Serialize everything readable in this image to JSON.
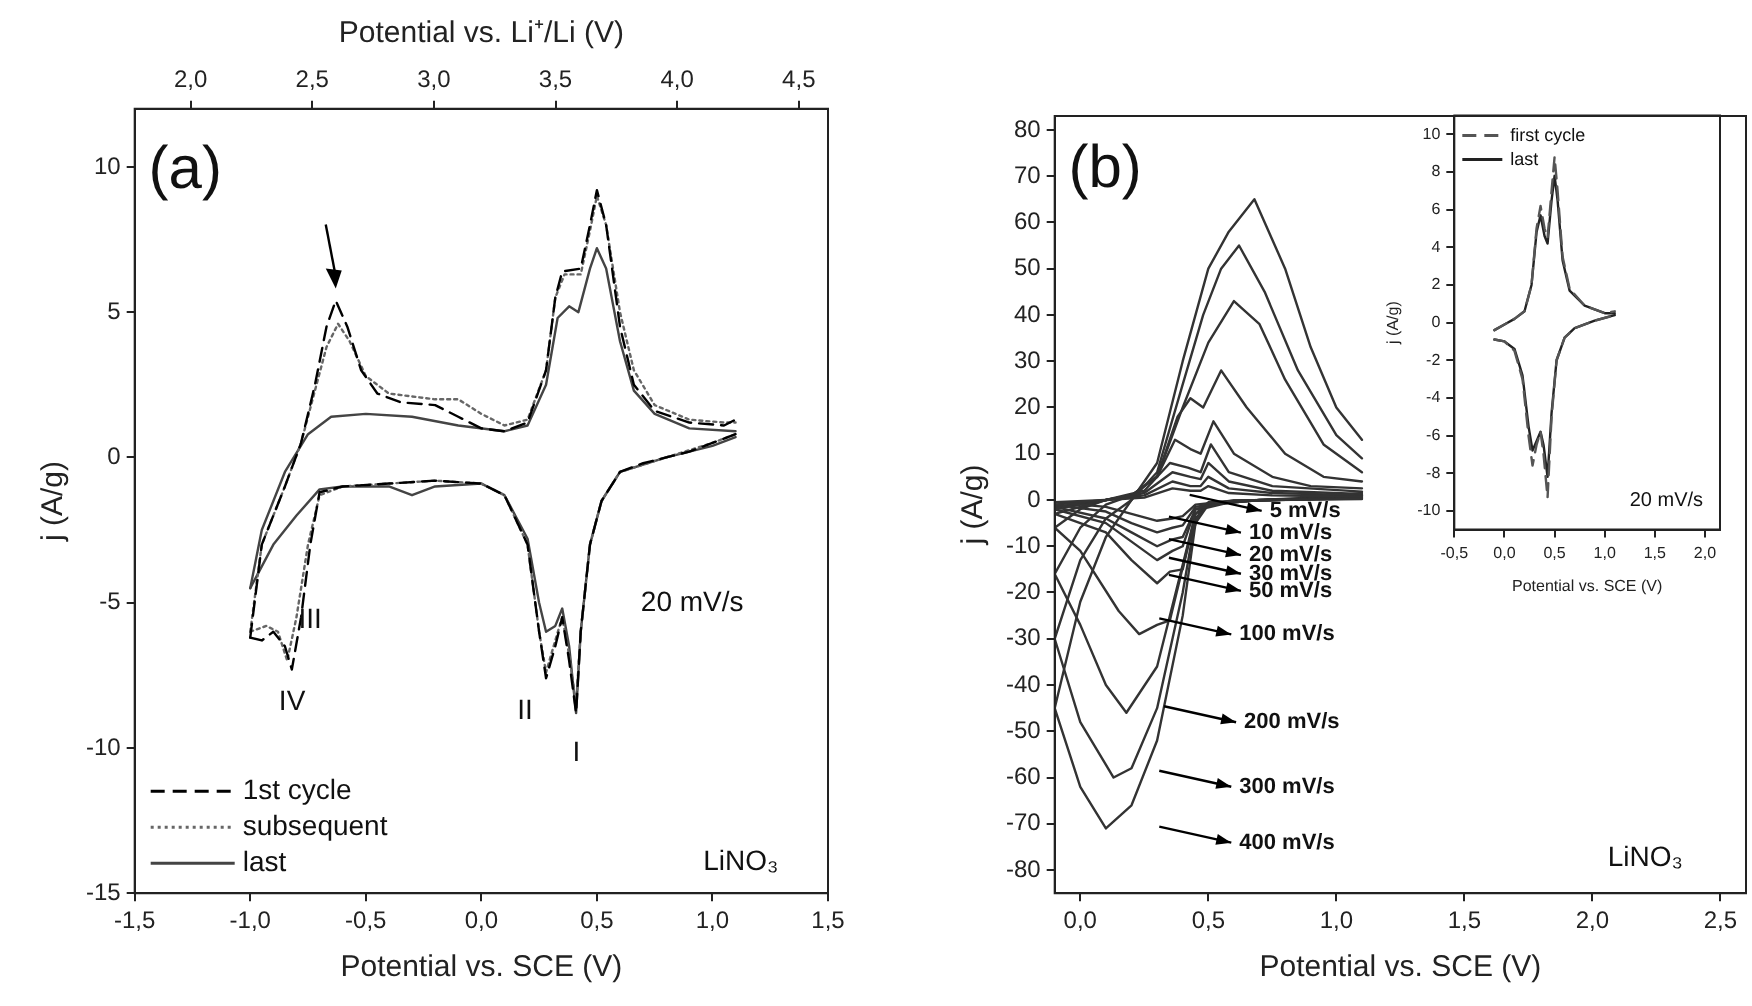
{
  "chart_data": [
    {
      "type": "line",
      "xlabel": "Potential vs. SCE (V)",
      "x2label": "Potential vs. Li⁺/Li (V)",
      "ylabel": "j (A/g)",
      "xlim": [
        -1.5,
        1.5
      ],
      "xticks": [
        {
          "value": -1.5,
          "label": "-1,5"
        },
        {
          "value": -1.0,
          "label": "-1,0"
        },
        {
          "value": -0.5,
          "label": "-0,5"
        },
        {
          "value": 0,
          "label": "0,0"
        },
        {
          "value": 0.5,
          "label": "0,5"
        },
        {
          "value": 1.0,
          "label": "1,0"
        },
        {
          "value": 1.5,
          "label": "1,5"
        }
      ],
      "x2lim": [
        1.77,
        4.62
      ],
      "x2ticks": [
        {
          "value": 2.0,
          "label": "2,0"
        },
        {
          "value": 2.5,
          "label": "2,5"
        },
        {
          "value": 3.0,
          "label": "3,0"
        },
        {
          "value": 3.5,
          "label": "3,5"
        },
        {
          "value": 4.0,
          "label": "4,0"
        },
        {
          "value": 4.5,
          "label": "4,5"
        }
      ],
      "ylim": [
        -15,
        12
      ],
      "yticks": [
        -15,
        -10,
        -5,
        0,
        5,
        10
      ],
      "legend": "bottom left",
      "annotations": [
        "(a)",
        "20 mV/s",
        "LiNO₃",
        "III",
        "IV",
        "II",
        "I"
      ],
      "series": [
        {
          "name": "1st cycle",
          "color": "#000000",
          "line_style": "dashed",
          "x": [
            -1.0,
            -0.95,
            -0.85,
            -0.78,
            -0.72,
            -0.67,
            -0.63,
            -0.58,
            -0.52,
            -0.45,
            -0.35,
            -0.2,
            -0.1,
            0.0,
            0.1,
            0.2,
            0.28,
            0.32,
            0.35,
            0.43,
            0.47,
            0.5,
            0.54,
            0.6,
            0.66,
            0.75,
            0.9,
            1.05,
            1.1
          ],
          "values": [
            -6.2,
            -3,
            -1,
            0.5,
            2.5,
            4.5,
            5.4,
            4.5,
            3,
            2.2,
            1.9,
            1.8,
            1.4,
            1.0,
            0.9,
            1.2,
            3,
            5.5,
            6.4,
            6.5,
            8,
            9.2,
            8,
            4.5,
            2.5,
            1.6,
            1.2,
            1.1,
            1.3
          ]
        },
        {
          "color": "#000000",
          "line_style": "dashed",
          "x": [
            -1.0,
            -0.95,
            -0.9,
            -0.85,
            -0.82,
            -0.78,
            -0.74,
            -0.7,
            -0.6,
            -0.4,
            -0.2,
            0.0,
            0.1,
            0.2,
            0.25,
            0.28,
            0.32,
            0.35,
            0.38,
            0.41,
            0.43,
            0.47,
            0.52,
            0.6,
            0.7,
            0.8,
            0.9,
            1.0,
            1.1
          ],
          "values": [
            -6.2,
            -6.3,
            -6,
            -6.5,
            -7.3,
            -5.5,
            -3,
            -1.2,
            -1,
            -0.9,
            -0.8,
            -0.9,
            -1.3,
            -3,
            -6,
            -7.6,
            -6.5,
            -5.5,
            -7,
            -8.8,
            -6,
            -3,
            -1.5,
            -0.5,
            -0.2,
            0,
            0.2,
            0.5,
            0.8
          ]
        },
        {
          "name": "subsequent",
          "color": "#666666",
          "line_style": "dotted",
          "x": [
            -1.0,
            -0.95,
            -0.85,
            -0.78,
            -0.72,
            -0.67,
            -0.62,
            -0.57,
            -0.5,
            -0.4,
            -0.2,
            -0.1,
            0.0,
            0.1,
            0.2,
            0.28,
            0.32,
            0.36,
            0.43,
            0.47,
            0.5,
            0.54,
            0.6,
            0.66,
            0.75,
            0.9,
            1.05,
            1.1
          ],
          "values": [
            -6,
            -3,
            -1,
            0.5,
            2.3,
            3.8,
            4.6,
            4,
            2.8,
            2.2,
            2,
            2,
            1.5,
            1.1,
            1.3,
            3,
            5.5,
            6.3,
            6.3,
            7.8,
            9,
            8,
            5,
            3,
            1.8,
            1.3,
            1.2,
            1.2
          ]
        },
        {
          "color": "#666666",
          "line_style": "dotted",
          "x": [
            -1.0,
            -0.93,
            -0.88,
            -0.84,
            -0.8,
            -0.75,
            -0.7,
            -0.6,
            -0.4,
            -0.2,
            0.0,
            0.1,
            0.2,
            0.25,
            0.28,
            0.32,
            0.35,
            0.38,
            0.41,
            0.43,
            0.47,
            0.52,
            0.6,
            0.8,
            1.0,
            1.1
          ],
          "values": [
            -6,
            -5.8,
            -6,
            -7,
            -5.5,
            -3,
            -1.3,
            -1,
            -0.9,
            -0.8,
            -0.9,
            -1.3,
            -3,
            -6,
            -7.4,
            -6.3,
            -5.5,
            -6.8,
            -8.5,
            -6,
            -3,
            -1.5,
            -0.5,
            0,
            0.5,
            0.8
          ]
        },
        {
          "name": "last",
          "color": "#444444",
          "line_style": "solid",
          "x": [
            -1.0,
            -0.95,
            -0.85,
            -0.75,
            -0.65,
            -0.5,
            -0.3,
            -0.1,
            0.1,
            0.2,
            0.28,
            0.33,
            0.38,
            0.42,
            0.47,
            0.5,
            0.54,
            0.6,
            0.66,
            0.75,
            0.9,
            1.1
          ],
          "values": [
            -4.5,
            -2.5,
            -0.5,
            0.8,
            1.4,
            1.5,
            1.4,
            1.1,
            0.9,
            1.1,
            2.5,
            4.8,
            5.2,
            5,
            6.5,
            7.2,
            6.5,
            4,
            2.3,
            1.5,
            1,
            0.9
          ]
        },
        {
          "color": "#444444",
          "line_style": "solid",
          "x": [
            -1.0,
            -0.9,
            -0.8,
            -0.7,
            -0.6,
            -0.4,
            -0.3,
            -0.2,
            0.0,
            0.1,
            0.2,
            0.25,
            0.28,
            0.32,
            0.35,
            0.38,
            0.41,
            0.43,
            0.47,
            0.52,
            0.6,
            0.8,
            1.0,
            1.1
          ],
          "values": [
            -4.5,
            -3,
            -2,
            -1.1,
            -1,
            -1,
            -1.3,
            -1,
            -0.9,
            -1.3,
            -2.8,
            -5,
            -6,
            -5.8,
            -5.2,
            -6.5,
            -8.8,
            -6,
            -3,
            -1.5,
            -0.5,
            0,
            0.4,
            0.7
          ]
        }
      ]
    },
    {
      "type": "line",
      "xlabel": "Potential vs. SCE (V)",
      "ylabel": "j (A/g)",
      "xlim": [
        -0.1,
        2.6
      ],
      "xticks": [
        {
          "value": 0,
          "label": "0,0"
        },
        {
          "value": 0.5,
          "label": "0,5"
        },
        {
          "value": 1.0,
          "label": "1,0"
        },
        {
          "value": 1.5,
          "label": "1,5"
        },
        {
          "value": 2.0,
          "label": "2,0"
        },
        {
          "value": 2.5,
          "label": "2,5"
        }
      ],
      "ylim": [
        -85,
        83
      ],
      "yticks": [
        -80,
        -70,
        -60,
        -50,
        -40,
        -30,
        -20,
        -10,
        0,
        10,
        20,
        30,
        40,
        50,
        60,
        70,
        80
      ],
      "annotations": [
        "(b)",
        "LiNO₃",
        "5 mV/s",
        "10 mV/s",
        "20 mV/s",
        "30 mV/s",
        "50 mV/s",
        "100 mV/s",
        "200 mV/s",
        "300 mV/s",
        "400 mV/s"
      ],
      "series": [
        {
          "color": "#333333",
          "x": [
            -0.1,
            0.1,
            0.25,
            0.36,
            0.43,
            0.47,
            0.5,
            0.58,
            0.75,
            1.1
          ],
          "values": [
            -0.5,
            0,
            0.5,
            2.5,
            2,
            2,
            3,
            1.5,
            1,
            0.7
          ]
        },
        {
          "color": "#333333",
          "x": [
            -0.1,
            0.1,
            0.2,
            0.3,
            0.36,
            0.4,
            0.45,
            0.6,
            1.1
          ],
          "values": [
            -0.5,
            -1.5,
            -3,
            -4.5,
            -4,
            -3.5,
            -1,
            -0.1,
            0.2
          ]
        },
        {
          "color": "#333333",
          "x": [
            -0.1,
            0.1,
            0.25,
            0.36,
            0.43,
            0.47,
            0.5,
            0.58,
            0.75,
            1.1
          ],
          "values": [
            -1,
            0,
            1,
            4,
            3,
            3,
            5,
            2.5,
            1.5,
            1
          ]
        },
        {
          "color": "#333333",
          "x": [
            -0.1,
            0.1,
            0.2,
            0.3,
            0.36,
            0.4,
            0.45,
            0.6,
            1.1
          ],
          "values": [
            -1,
            -2.5,
            -5,
            -7,
            -6,
            -5.5,
            -1.5,
            -0.1,
            0.3
          ]
        },
        {
          "color": "#333333",
          "x": [
            -0.1,
            0.1,
            0.25,
            0.36,
            0.43,
            0.47,
            0.5,
            0.58,
            0.75,
            1.1
          ],
          "values": [
            -1.5,
            0,
            1.5,
            6,
            5,
            4.5,
            8,
            4,
            2,
            1.3
          ]
        },
        {
          "color": "#333333",
          "x": [
            -0.1,
            0.1,
            0.2,
            0.3,
            0.36,
            0.4,
            0.45,
            0.6,
            1.1
          ],
          "values": [
            -1.5,
            -4,
            -7,
            -10,
            -8.5,
            -8,
            -2,
            -0.2,
            0.4
          ]
        },
        {
          "color": "#333333",
          "x": [
            -0.1,
            0.1,
            0.25,
            0.35,
            0.42,
            0.47,
            0.51,
            0.58,
            0.75,
            1.1
          ],
          "values": [
            -2,
            0,
            2,
            8,
            7,
            6,
            12,
            6,
            3,
            1.8
          ]
        },
        {
          "color": "#333333",
          "x": [
            -0.1,
            0.1,
            0.2,
            0.3,
            0.36,
            0.4,
            0.45,
            0.6,
            1.1
          ],
          "values": [
            -2,
            -5,
            -9,
            -13,
            -11,
            -10,
            -2,
            -0.2,
            0.5
          ]
        },
        {
          "color": "#333333",
          "x": [
            -0.1,
            0.1,
            0.2,
            0.3,
            0.37,
            0.43,
            0.47,
            0.52,
            0.6,
            0.75,
            0.9,
            1.1
          ],
          "values": [
            -3,
            0,
            1,
            5,
            13,
            11,
            10,
            17,
            10,
            5,
            3,
            2.5
          ]
        },
        {
          "color": "#333333",
          "x": [
            -0.1,
            0.1,
            0.2,
            0.3,
            0.35,
            0.4,
            0.45,
            0.5,
            0.8,
            1.1
          ],
          "values": [
            -3,
            -7,
            -13,
            -18,
            -15.5,
            -15,
            -3,
            -0.5,
            0.1,
            0.6
          ]
        },
        {
          "color": "#333333",
          "x": [
            -0.1,
            0.0,
            0.1,
            0.2,
            0.3,
            0.38,
            0.43,
            0.48,
            0.55,
            0.65,
            0.8,
            0.95,
            1.1
          ],
          "values": [
            -6,
            -2,
            0,
            1,
            5,
            18,
            22,
            20,
            28,
            20,
            10,
            5,
            4
          ]
        },
        {
          "color": "#333333",
          "x": [
            -0.1,
            0.0,
            0.15,
            0.23,
            0.3,
            0.35,
            0.42,
            0.47,
            0.6,
            0.9,
            1.1
          ],
          "values": [
            -6,
            -11,
            -24,
            -29,
            -27,
            -26,
            -10,
            -2,
            -0.3,
            0.2,
            0.8
          ]
        },
        {
          "color": "#333333",
          "x": [
            -0.1,
            0.0,
            0.1,
            0.2,
            0.3,
            0.4,
            0.5,
            0.6,
            0.7,
            0.8,
            0.95,
            1.1
          ],
          "values": [
            -16,
            -6,
            -1,
            1,
            5,
            20,
            34,
            43,
            38,
            26,
            12,
            6
          ]
        },
        {
          "color": "#333333",
          "x": [
            -0.1,
            0.0,
            0.1,
            0.18,
            0.3,
            0.4,
            0.45,
            0.5,
            0.7,
            0.9,
            1.1
          ],
          "values": [
            -16,
            -27,
            -40,
            -46,
            -36,
            -14,
            -3,
            -1,
            0,
            0.3,
            1
          ]
        },
        {
          "color": "#333333",
          "x": [
            -0.1,
            0.0,
            0.1,
            0.2,
            0.3,
            0.4,
            0.48,
            0.55,
            0.62,
            0.72,
            0.85,
            1.0,
            1.1
          ],
          "values": [
            -30,
            -13,
            -4,
            0,
            6,
            25,
            40,
            50,
            55,
            45,
            28,
            14,
            9
          ]
        },
        {
          "color": "#333333",
          "x": [
            -0.1,
            0.0,
            0.13,
            0.2,
            0.3,
            0.4,
            0.45,
            0.5,
            0.7,
            0.9,
            1.1
          ],
          "values": [
            -30,
            -48,
            -60,
            -58,
            -45,
            -20,
            -4,
            -1,
            0,
            0.4,
            1.2
          ]
        },
        {
          "color": "#333333",
          "x": [
            -0.1,
            0.0,
            0.1,
            0.2,
            0.3,
            0.4,
            0.5,
            0.58,
            0.68,
            0.8,
            0.9,
            1.0,
            1.1
          ],
          "values": [
            -45,
            -22,
            -8,
            0,
            8,
            30,
            50,
            58,
            65,
            50,
            33,
            20,
            13
          ]
        },
        {
          "color": "#333333",
          "x": [
            -0.1,
            0.0,
            0.1,
            0.2,
            0.3,
            0.4,
            0.45,
            0.5,
            0.7,
            0.9,
            1.1
          ],
          "values": [
            -45,
            -62,
            -71,
            -66,
            -52,
            -25,
            -5,
            -1,
            0,
            0.5,
            1.5
          ]
        }
      ]
    },
    {
      "type": "line",
      "xlabel": "Potential vs. SCE (V)",
      "ylabel": "j (A/g)",
      "xlim": [
        -0.5,
        2.15
      ],
      "xticks": [
        {
          "value": -0.5,
          "label": "-0,5"
        },
        {
          "value": 0,
          "label": "0,0"
        },
        {
          "value": 0.5,
          "label": "0,5"
        },
        {
          "value": 1.0,
          "label": "1,0"
        },
        {
          "value": 1.5,
          "label": "1,5"
        },
        {
          "value": 2.0,
          "label": "2,0"
        }
      ],
      "ylim": [
        -11,
        11
      ],
      "yticks": [
        -10,
        -8,
        -6,
        -4,
        -2,
        0,
        2,
        4,
        6,
        8,
        10
      ],
      "legend": "top left",
      "annotations": [
        "20 mV/s"
      ],
      "series": [
        {
          "name": "first cycle",
          "color": "#555555",
          "line_style": "dashed",
          "x": [
            -0.1,
            0.0,
            0.1,
            0.2,
            0.27,
            0.32,
            0.36,
            0.4,
            0.43,
            0.47,
            0.5,
            0.53,
            0.58,
            0.65,
            0.8,
            1.0,
            1.1
          ],
          "values": [
            -0.4,
            -0.1,
            0.2,
            0.6,
            2,
            5,
            6.2,
            5,
            4.5,
            7,
            8.8,
            7,
            3.5,
            1.8,
            0.9,
            0.5,
            0.6
          ]
        },
        {
          "color": "#555555",
          "line_style": "dashed",
          "x": [
            -0.1,
            0.0,
            0.1,
            0.18,
            0.24,
            0.28,
            0.32,
            0.36,
            0.39,
            0.43,
            0.47,
            0.52,
            0.6,
            0.7,
            0.9,
            1.1
          ],
          "values": [
            -0.9,
            -1,
            -1.5,
            -3,
            -6,
            -7.6,
            -6.5,
            -5.8,
            -7,
            -9.3,
            -5,
            -2,
            -0.8,
            -0.3,
            0.1,
            0.4
          ]
        },
        {
          "name": "last",
          "color": "#222222",
          "line_style": "solid",
          "x": [
            -0.1,
            0.0,
            0.1,
            0.2,
            0.27,
            0.32,
            0.36,
            0.4,
            0.43,
            0.47,
            0.5,
            0.53,
            0.58,
            0.65,
            0.8,
            1.0,
            1.1
          ],
          "values": [
            -0.4,
            -0.1,
            0.2,
            0.6,
            2,
            4.8,
            5.7,
            4.6,
            4.2,
            6.5,
            7.8,
            6.5,
            3.3,
            1.7,
            0.9,
            0.5,
            0.5
          ]
        },
        {
          "color": "#222222",
          "line_style": "solid",
          "x": [
            -0.1,
            0.0,
            0.1,
            0.18,
            0.24,
            0.28,
            0.32,
            0.36,
            0.39,
            0.43,
            0.47,
            0.52,
            0.6,
            0.7,
            0.9,
            1.1
          ],
          "values": [
            -0.9,
            -1,
            -1.4,
            -2.8,
            -5.5,
            -6.8,
            -6.3,
            -5.8,
            -6.5,
            -8.2,
            -4.8,
            -2,
            -0.8,
            -0.3,
            0.1,
            0.4
          ]
        }
      ]
    }
  ]
}
